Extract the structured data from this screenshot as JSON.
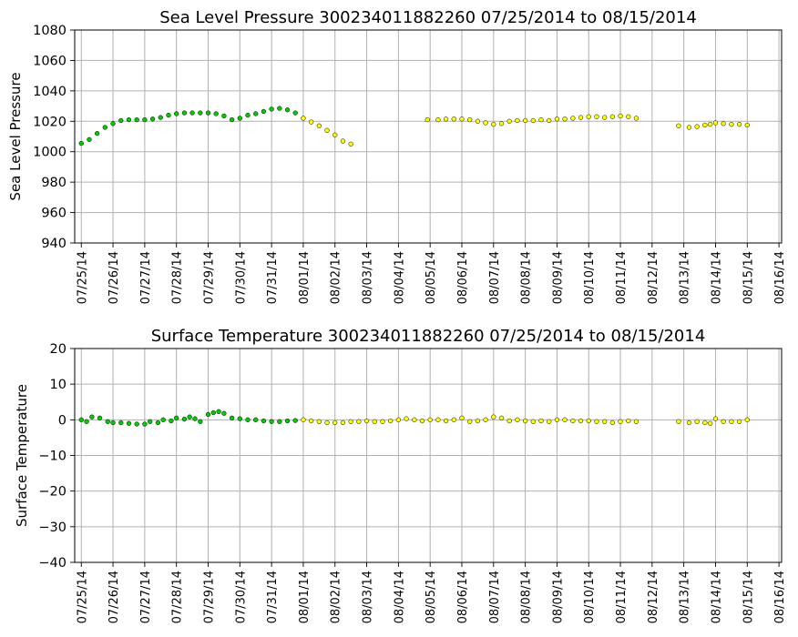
{
  "chart_data": [
    {
      "type": "scatter",
      "title": "Sea Level Pressure 300234011882260  07/25/2014 to 08/15/2014",
      "xlabel": "",
      "ylabel": "Sea Level Pressure",
      "ylim": [
        940,
        1080
      ],
      "yticks": [
        940,
        960,
        980,
        1000,
        1020,
        1040,
        1060,
        1080
      ],
      "xlim": [
        "2014-07-24T19:00",
        "2014-08-16T02:00"
      ],
      "xticks": [
        "07/25/14",
        "07/26/14",
        "07/27/14",
        "07/28/14",
        "07/29/14",
        "07/30/14",
        "07/31/14",
        "08/01/14",
        "08/02/14",
        "08/03/14",
        "08/04/14",
        "08/05/14",
        "08/06/14",
        "08/07/14",
        "08/08/14",
        "08/09/14",
        "08/10/14",
        "08/11/14",
        "08/12/14",
        "08/13/14",
        "08/14/14",
        "08/15/14",
        "08/16/14"
      ],
      "grid": true,
      "series": [
        {
          "color": "#00cc00",
          "points": [
            [
              "2014-07-25T00:00",
              1005.5
            ],
            [
              "2014-07-25T06:00",
              1008
            ],
            [
              "2014-07-25T12:00",
              1012
            ],
            [
              "2014-07-25T18:00",
              1016
            ],
            [
              "2014-07-26T00:00",
              1018.5
            ],
            [
              "2014-07-26T06:00",
              1020.5
            ],
            [
              "2014-07-26T12:00",
              1021
            ],
            [
              "2014-07-26T18:00",
              1021
            ],
            [
              "2014-07-27T00:00",
              1021
            ],
            [
              "2014-07-27T06:00",
              1021.5
            ],
            [
              "2014-07-27T12:00",
              1022.5
            ],
            [
              "2014-07-27T18:00",
              1024
            ],
            [
              "2014-07-28T00:00",
              1025
            ],
            [
              "2014-07-28T06:00",
              1025.5
            ],
            [
              "2014-07-28T12:00",
              1025.5
            ],
            [
              "2014-07-28T18:00",
              1025.5
            ],
            [
              "2014-07-29T00:00",
              1025.5
            ],
            [
              "2014-07-29T06:00",
              1025
            ],
            [
              "2014-07-29T12:00",
              1023.5
            ],
            [
              "2014-07-29T18:00",
              1021
            ],
            [
              "2014-07-30T00:00",
              1022
            ],
            [
              "2014-07-30T06:00",
              1024
            ],
            [
              "2014-07-30T12:00",
              1025
            ],
            [
              "2014-07-30T18:00",
              1026.5
            ],
            [
              "2014-07-31T00:00",
              1028
            ],
            [
              "2014-07-31T06:00",
              1028.5
            ],
            [
              "2014-07-31T12:00",
              1027.5
            ],
            [
              "2014-07-31T18:00",
              1025.5
            ]
          ]
        },
        {
          "color": "#ffff00",
          "points": [
            [
              "2014-08-01T00:00",
              1022
            ],
            [
              "2014-08-01T06:00",
              1019.5
            ],
            [
              "2014-08-01T12:00",
              1017
            ],
            [
              "2014-08-01T18:00",
              1014
            ],
            [
              "2014-08-02T00:00",
              1011
            ],
            [
              "2014-08-02T06:00",
              1007
            ],
            [
              "2014-08-02T12:00",
              1005
            ],
            [
              "2014-08-04T22:00",
              1021
            ],
            [
              "2014-08-05T06:00",
              1021
            ],
            [
              "2014-08-05T12:00",
              1021.5
            ],
            [
              "2014-08-05T18:00",
              1021.5
            ],
            [
              "2014-08-06T00:00",
              1021.5
            ],
            [
              "2014-08-06T06:00",
              1021
            ],
            [
              "2014-08-06T12:00",
              1020
            ],
            [
              "2014-08-06T18:00",
              1019
            ],
            [
              "2014-08-07T00:00",
              1018
            ],
            [
              "2014-08-07T06:00",
              1018.5
            ],
            [
              "2014-08-07T12:00",
              1020
            ],
            [
              "2014-08-07T18:00",
              1020.5
            ],
            [
              "2014-08-08T00:00",
              1020.5
            ],
            [
              "2014-08-08T06:00",
              1020.5
            ],
            [
              "2014-08-08T12:00",
              1021
            ],
            [
              "2014-08-08T18:00",
              1020.5
            ],
            [
              "2014-08-09T00:00",
              1021.5
            ],
            [
              "2014-08-09T06:00",
              1021.5
            ],
            [
              "2014-08-09T12:00",
              1022
            ],
            [
              "2014-08-09T18:00",
              1022.5
            ],
            [
              "2014-08-10T00:00",
              1023
            ],
            [
              "2014-08-10T06:00",
              1023
            ],
            [
              "2014-08-10T12:00",
              1022.5
            ],
            [
              "2014-08-10T18:00",
              1023
            ],
            [
              "2014-08-11T00:00",
              1023.5
            ],
            [
              "2014-08-11T06:00",
              1023
            ],
            [
              "2014-08-11T12:00",
              1022
            ],
            [
              "2014-08-12T20:00",
              1017
            ],
            [
              "2014-08-13T04:00",
              1016
            ],
            [
              "2014-08-13T10:00",
              1016.5
            ],
            [
              "2014-08-13T16:00",
              1017.5
            ],
            [
              "2014-08-13T20:00",
              1018
            ],
            [
              "2014-08-14T00:00",
              1019
            ],
            [
              "2014-08-14T06:00",
              1018.5
            ],
            [
              "2014-08-14T12:00",
              1018
            ],
            [
              "2014-08-14T18:00",
              1018
            ],
            [
              "2014-08-15T00:00",
              1017.5
            ]
          ]
        }
      ]
    },
    {
      "type": "scatter",
      "title": "Surface Temperature 300234011882260  07/25/2014 to 08/15/2014",
      "xlabel": "",
      "ylabel": "Surface Temperature",
      "ylim": [
        -40,
        20
      ],
      "yticks": [
        -40,
        -30,
        -20,
        -10,
        0,
        10,
        20
      ],
      "xlim": [
        "2014-07-24T19:00",
        "2014-08-16T02:00"
      ],
      "xticks": [
        "07/25/14",
        "07/26/14",
        "07/27/14",
        "07/28/14",
        "07/29/14",
        "07/30/14",
        "07/31/14",
        "08/01/14",
        "08/02/14",
        "08/03/14",
        "08/04/14",
        "08/05/14",
        "08/06/14",
        "08/07/14",
        "08/08/14",
        "08/09/14",
        "08/10/14",
        "08/11/14",
        "08/12/14",
        "08/13/14",
        "08/14/14",
        "08/15/14",
        "08/16/14"
      ],
      "grid": true,
      "series": [
        {
          "color": "#00cc00",
          "points": [
            [
              "2014-07-25T00:00",
              0
            ],
            [
              "2014-07-25T04:00",
              -0.5
            ],
            [
              "2014-07-25T08:00",
              0.8
            ],
            [
              "2014-07-25T14:00",
              0.5
            ],
            [
              "2014-07-25T20:00",
              -0.5
            ],
            [
              "2014-07-26T00:00",
              -0.8
            ],
            [
              "2014-07-26T06:00",
              -0.8
            ],
            [
              "2014-07-26T12:00",
              -1
            ],
            [
              "2014-07-26T18:00",
              -1.2
            ],
            [
              "2014-07-27T00:00",
              -1.2
            ],
            [
              "2014-07-27T04:00",
              -0.5
            ],
            [
              "2014-07-27T10:00",
              -0.8
            ],
            [
              "2014-07-27T14:00",
              0
            ],
            [
              "2014-07-27T20:00",
              -0.3
            ],
            [
              "2014-07-28T00:00",
              0.5
            ],
            [
              "2014-07-28T06:00",
              0.2
            ],
            [
              "2014-07-28T10:00",
              0.8
            ],
            [
              "2014-07-28T14:00",
              0.3
            ],
            [
              "2014-07-28T18:00",
              -0.5
            ],
            [
              "2014-07-29T00:00",
              1.5
            ],
            [
              "2014-07-29T04:00",
              2
            ],
            [
              "2014-07-29T08:00",
              2.3
            ],
            [
              "2014-07-29T12:00",
              1.8
            ],
            [
              "2014-07-29T18:00",
              0.5
            ],
            [
              "2014-07-30T00:00",
              0.3
            ],
            [
              "2014-07-30T06:00",
              0
            ],
            [
              "2014-07-30T12:00",
              0
            ],
            [
              "2014-07-30T18:00",
              -0.3
            ],
            [
              "2014-07-31T00:00",
              -0.5
            ],
            [
              "2014-07-31T06:00",
              -0.5
            ],
            [
              "2014-07-31T12:00",
              -0.3
            ],
            [
              "2014-07-31T18:00",
              -0.2
            ]
          ]
        },
        {
          "color": "#ffff00",
          "points": [
            [
              "2014-08-01T00:00",
              0
            ],
            [
              "2014-08-01T06:00",
              -0.3
            ],
            [
              "2014-08-01T12:00",
              -0.5
            ],
            [
              "2014-08-01T18:00",
              -0.8
            ],
            [
              "2014-08-02T00:00",
              -0.8
            ],
            [
              "2014-08-02T06:00",
              -0.8
            ],
            [
              "2014-08-02T12:00",
              -0.5
            ],
            [
              "2014-08-02T18:00",
              -0.5
            ],
            [
              "2014-08-03T00:00",
              -0.3
            ],
            [
              "2014-08-03T06:00",
              -0.5
            ],
            [
              "2014-08-03T12:00",
              -0.5
            ],
            [
              "2014-08-03T18:00",
              -0.3
            ],
            [
              "2014-08-04T00:00",
              0
            ],
            [
              "2014-08-04T06:00",
              0.3
            ],
            [
              "2014-08-04T12:00",
              0
            ],
            [
              "2014-08-04T18:00",
              -0.3
            ],
            [
              "2014-08-05T00:00",
              0
            ],
            [
              "2014-08-05T06:00",
              0
            ],
            [
              "2014-08-05T12:00",
              -0.3
            ],
            [
              "2014-08-05T18:00",
              0
            ],
            [
              "2014-08-06T00:00",
              0.5
            ],
            [
              "2014-08-06T06:00",
              -0.5
            ],
            [
              "2014-08-06T12:00",
              -0.3
            ],
            [
              "2014-08-06T18:00",
              0
            ],
            [
              "2014-08-07T00:00",
              0.8
            ],
            [
              "2014-08-07T06:00",
              0.5
            ],
            [
              "2014-08-07T12:00",
              -0.3
            ],
            [
              "2014-08-07T18:00",
              0
            ],
            [
              "2014-08-08T00:00",
              -0.3
            ],
            [
              "2014-08-08T06:00",
              -0.5
            ],
            [
              "2014-08-08T12:00",
              -0.3
            ],
            [
              "2014-08-08T18:00",
              -0.5
            ],
            [
              "2014-08-09T00:00",
              0
            ],
            [
              "2014-08-09T06:00",
              0
            ],
            [
              "2014-08-09T12:00",
              -0.3
            ],
            [
              "2014-08-09T18:00",
              -0.3
            ],
            [
              "2014-08-10T00:00",
              -0.3
            ],
            [
              "2014-08-10T06:00",
              -0.5
            ],
            [
              "2014-08-10T12:00",
              -0.5
            ],
            [
              "2014-08-10T18:00",
              -0.8
            ],
            [
              "2014-08-11T00:00",
              -0.5
            ],
            [
              "2014-08-11T06:00",
              -0.3
            ],
            [
              "2014-08-11T12:00",
              -0.5
            ],
            [
              "2014-08-12T20:00",
              -0.5
            ],
            [
              "2014-08-13T04:00",
              -0.8
            ],
            [
              "2014-08-13T10:00",
              -0.5
            ],
            [
              "2014-08-13T16:00",
              -0.8
            ],
            [
              "2014-08-13T20:00",
              -1
            ],
            [
              "2014-08-14T00:00",
              0.3
            ],
            [
              "2014-08-14T06:00",
              -0.5
            ],
            [
              "2014-08-14T12:00",
              -0.5
            ],
            [
              "2014-08-14T18:00",
              -0.5
            ],
            [
              "2014-08-15T00:00",
              0
            ]
          ]
        }
      ]
    }
  ]
}
